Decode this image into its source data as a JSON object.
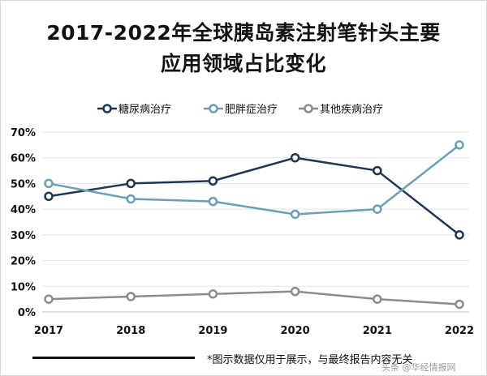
{
  "title_line1": "2017-2022年全球胰岛素注射笔针头主要",
  "title_line2": "应用领域占比变化",
  "note": "*图示数据仅用于展示，与最终报告内容无关",
  "watermark": "头条 @华经情报网",
  "chart_data": {
    "type": "line",
    "categories": [
      "2017",
      "2018",
      "2019",
      "2020",
      "2021",
      "2022"
    ],
    "series": [
      {
        "name": "糖尿病治疗",
        "values": [
          45,
          50,
          51,
          60,
          55,
          30
        ],
        "color": "#1f3552"
      },
      {
        "name": "肥胖症治疗",
        "values": [
          50,
          44,
          43,
          38,
          40,
          65
        ],
        "color": "#6a9fb5"
      },
      {
        "name": "其他疾病治疗",
        "values": [
          5,
          6,
          7,
          8,
          5,
          3
        ],
        "color": "#8c8c8c"
      }
    ],
    "ylim": [
      0,
      70
    ],
    "yticks": [
      "0%",
      "10%",
      "20%",
      "30%",
      "40%",
      "50%",
      "60%",
      "70%"
    ],
    "grid": true,
    "legend": "top"
  }
}
